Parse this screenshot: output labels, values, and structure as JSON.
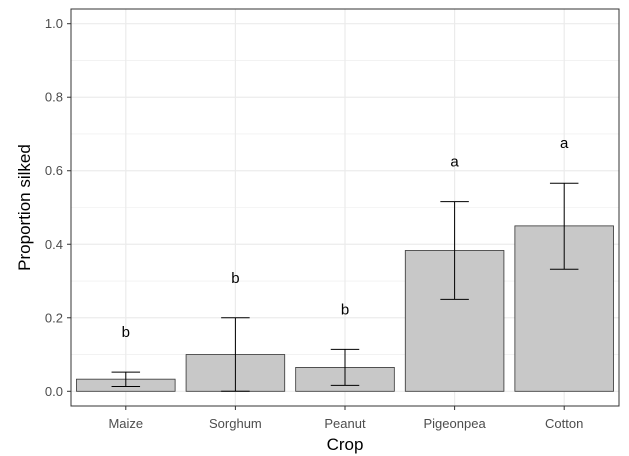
{
  "chart_data": {
    "type": "bar",
    "title": "",
    "xlabel": "Crop",
    "ylabel": "Proportion silked",
    "ylim": [
      -0.04,
      1.04
    ],
    "yticks": [
      0.0,
      0.2,
      0.4,
      0.6,
      0.8,
      1.0
    ],
    "ytick_labels": [
      "0.0",
      "0.2",
      "0.4",
      "0.6",
      "0.8",
      "1.0"
    ],
    "grid": true,
    "categories": [
      "Maize",
      "Sorghum",
      "Peanut",
      "Pigeonpea",
      "Cotton"
    ],
    "values": [
      0.033,
      0.1,
      0.065,
      0.383,
      0.45
    ],
    "error_low": [
      0.013,
      0.0,
      0.016,
      0.25,
      0.332
    ],
    "error_high": [
      0.052,
      0.2,
      0.114,
      0.516,
      0.566
    ],
    "significance": [
      "b",
      "b",
      "b",
      "a",
      "a"
    ],
    "colors": {
      "bar_fill": "#c8c8c8",
      "bar_stroke": "#333333",
      "grid": "#ebebeb",
      "panel_border": "#333333"
    }
  }
}
